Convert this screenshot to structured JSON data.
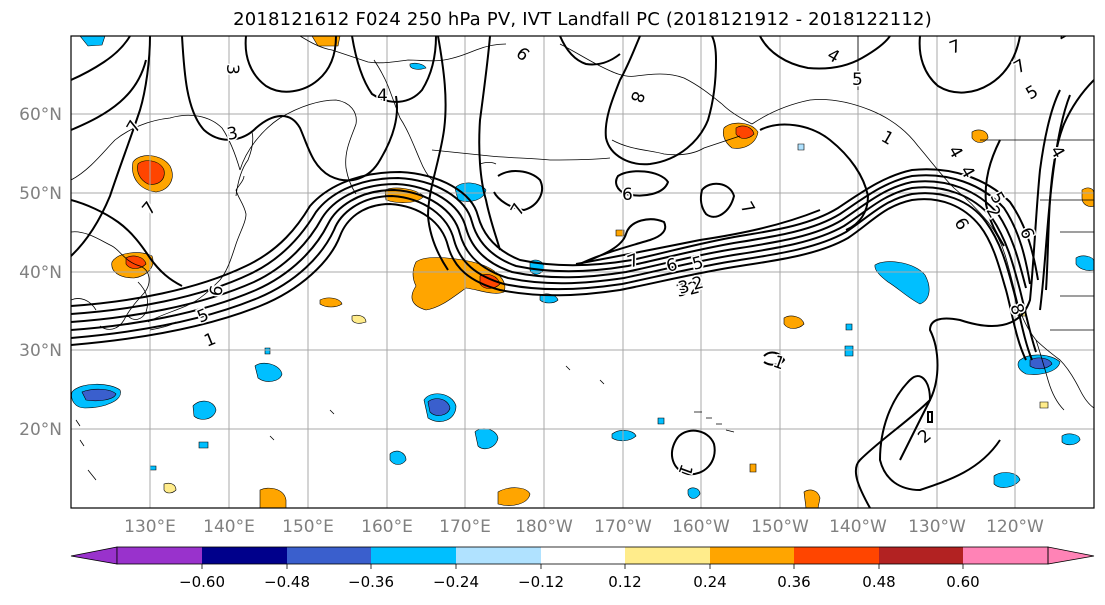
{
  "title": "2018121612 F024 250 hPa PV, IVT Landfall PC (2018121912 - 2018122112)",
  "lat_labels": [
    "60°N",
    "50°N",
    "40°N",
    "30°N",
    "20°N"
  ],
  "lon_labels": [
    "130°E",
    "140°E",
    "150°E",
    "160°E",
    "170°E",
    "180°W",
    "170°W",
    "160°W",
    "150°W",
    "140°W",
    "130°W",
    "120°W"
  ],
  "colorbar": {
    "colors": [
      "#9932cc",
      "#00008b",
      "#3a5fcd",
      "#00bfff",
      "#b0e2ff",
      "#ffffff",
      "#ffec8b",
      "#ffa500",
      "#ff4500",
      "#b22222",
      "#ff83b6"
    ],
    "ticks": [
      "−0.60",
      "−0.48",
      "−0.36",
      "−0.24",
      "−0.12",
      "0.12",
      "0.24",
      "0.36",
      "0.48",
      "0.60"
    ]
  },
  "contour_labels": [
    "1",
    "2",
    "3",
    "4",
    "5",
    "6",
    "7",
    "8",
    "1",
    "2",
    "3",
    "4",
    "5",
    "6",
    "7",
    "6",
    "7",
    "6",
    "5",
    "3",
    "2",
    "1",
    "2",
    "4",
    "5",
    "7",
    "6",
    "7",
    "3",
    "4",
    "6",
    "7",
    "1",
    "8",
    "5",
    "4",
    "7",
    "2"
  ]
}
